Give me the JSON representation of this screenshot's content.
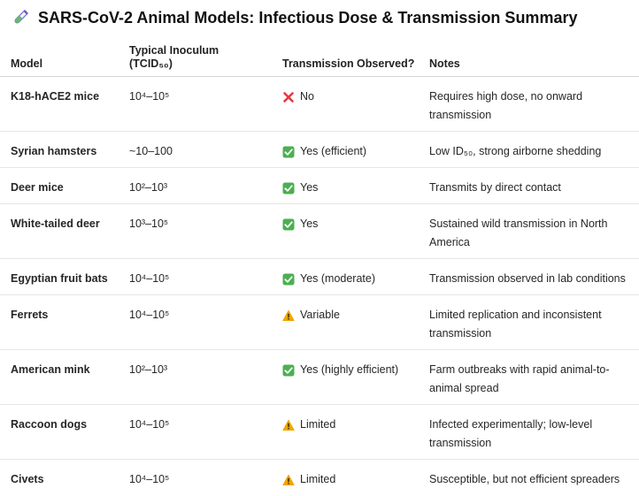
{
  "title": {
    "text": "SARS-CoV-2 Animal Models: Infectious Dose & Transmission Summary",
    "icon": "test-tube-icon"
  },
  "header": {
    "model": "Model",
    "inoculum_line1": "Typical Inoculum",
    "inoculum_line2": "(TCID₅₀)",
    "transmission": "Transmission Observed?",
    "notes": "Notes"
  },
  "status_icons": {
    "yes": {
      "icon": "check-box-icon",
      "color": "#4caf50"
    },
    "no": {
      "icon": "red-x-icon",
      "color": "#e53945"
    },
    "warn": {
      "icon": "warning-icon",
      "color": "#f0a500"
    }
  },
  "rows": [
    {
      "model": "K18-hACE2 mice",
      "inoculum": "10⁴–10⁵",
      "status": "no",
      "transmission": "No",
      "notes": "Requires high dose, no onward transmission"
    },
    {
      "model": "Syrian hamsters",
      "inoculum": "~10–100",
      "status": "yes",
      "transmission": "Yes (efficient)",
      "notes": "Low ID₅₀, strong airborne shedding"
    },
    {
      "model": "Deer mice",
      "inoculum": "10²–10³",
      "status": "yes",
      "transmission": "Yes",
      "notes": "Transmits by direct contact"
    },
    {
      "model": "White-tailed deer",
      "inoculum": "10³–10⁵",
      "status": "yes",
      "transmission": "Yes",
      "notes": "Sustained wild transmission in North America"
    },
    {
      "model": "Egyptian fruit bats",
      "inoculum": "10⁴–10⁵",
      "status": "yes",
      "transmission": "Yes (moderate)",
      "notes": "Transmission observed in lab conditions"
    },
    {
      "model": "Ferrets",
      "inoculum": "10⁴–10⁵",
      "status": "warn",
      "transmission": "Variable",
      "notes": "Limited replication and inconsistent transmission"
    },
    {
      "model": "American mink",
      "inoculum": "10²–10³",
      "status": "yes",
      "transmission": "Yes (highly efficient)",
      "notes": "Farm outbreaks with rapid animal-to-animal spread"
    },
    {
      "model": "Raccoon dogs",
      "inoculum": "10⁴–10⁵",
      "status": "warn",
      "transmission": "Limited",
      "notes": "Infected experimentally; low-level transmission"
    },
    {
      "model": "Civets",
      "inoculum": "10⁴–10⁵",
      "status": "warn",
      "transmission": "Limited",
      "notes": "Susceptible, but not efficient spreaders"
    }
  ]
}
